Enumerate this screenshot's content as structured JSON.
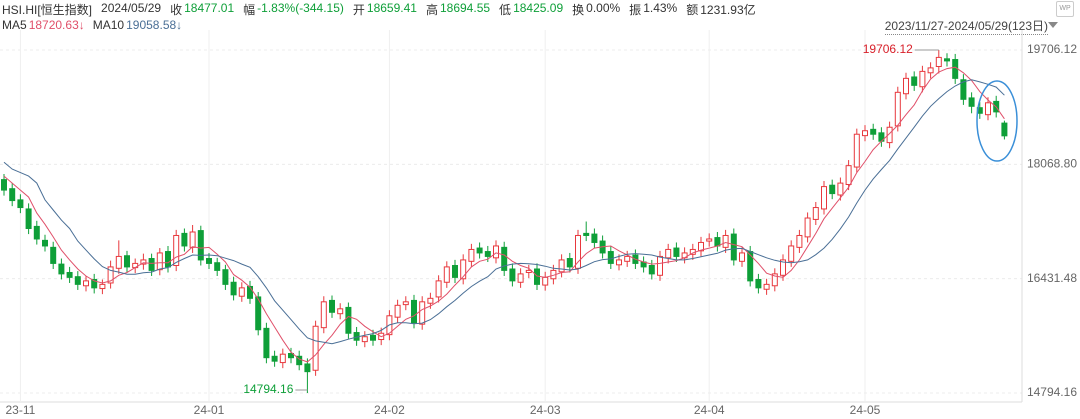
{
  "header": {
    "symbol": "HSI.HI[恒生指数]",
    "date": "2024/05/29",
    "quote": [
      {
        "label": "收",
        "value": "18477.01",
        "color": "#0e9f38"
      },
      {
        "label": "幅",
        "value": "-1.83%(-344.15)",
        "color": "#0e9f38"
      },
      {
        "label": "开",
        "value": "18659.41",
        "color": "#0e9f38"
      },
      {
        "label": "高",
        "value": "18694.55",
        "color": "#0e9f38"
      },
      {
        "label": "低",
        "value": "18425.09",
        "color": "#0e9f38"
      },
      {
        "label": "换",
        "value": "0.00%",
        "color": "#333333"
      },
      {
        "label": "振",
        "value": "1.43%",
        "color": "#333333"
      },
      {
        "label": "额",
        "value": "1231.93亿",
        "color": "#333333"
      }
    ],
    "range": "2023/11/27-2024/05/29(123日)"
  },
  "chart_data": {
    "type": "candlestick",
    "up_color": "#e8383d",
    "down_color": "#0e9f38",
    "grid": true,
    "categories": [
      null,
      null,
      "23-11",
      null,
      null,
      null,
      null,
      null,
      null,
      null,
      null,
      null,
      null,
      null,
      null,
      null,
      null,
      null,
      null,
      null,
      null,
      null,
      null,
      null,
      null,
      "24-01",
      null,
      null,
      null,
      null,
      null,
      null,
      null,
      null,
      null,
      null,
      null,
      null,
      null,
      null,
      null,
      null,
      null,
      null,
      null,
      null,
      null,
      "24-02",
      null,
      null,
      null,
      null,
      null,
      null,
      null,
      null,
      null,
      null,
      null,
      null,
      null,
      null,
      null,
      null,
      null,
      null,
      "24-03",
      null,
      null,
      null,
      null,
      null,
      null,
      null,
      null,
      null,
      null,
      null,
      null,
      null,
      null,
      null,
      null,
      null,
      null,
      null,
      "24-04",
      null,
      null,
      null,
      null,
      null,
      null,
      null,
      null,
      null,
      null,
      null,
      null,
      null,
      null,
      null,
      null,
      null,
      null,
      "24-05",
      null,
      null,
      null,
      null,
      null,
      null,
      null,
      null,
      null,
      null,
      null,
      null,
      null,
      null,
      null,
      null,
      null
    ],
    "open": [
      17850,
      17720,
      17560,
      17430,
      17180,
      16980,
      16880,
      16640,
      16520,
      16460,
      16330,
      16420,
      16290,
      16370,
      16580,
      16760,
      16590,
      16640,
      16720,
      16560,
      16820,
      16620,
      17080,
      16880,
      17120,
      16720,
      16660,
      16560,
      16380,
      16180,
      16320,
      16170,
      15720,
      15320,
      15230,
      15360,
      15320,
      15210,
      15120,
      15730,
      16120,
      15930,
      16020,
      15660,
      15530,
      15620,
      15560,
      15630,
      15880,
      16060,
      16120,
      15780,
      16080,
      16170,
      16380,
      16620,
      16430,
      16680,
      16870,
      16820,
      16730,
      16880,
      16570,
      16380,
      16520,
      16570,
      16340,
      16430,
      16530,
      16720,
      16580,
      17080,
      17070,
      16970,
      16820,
      16630,
      16680,
      16770,
      16670,
      16620,
      16480,
      16730,
      16870,
      16730,
      16780,
      16830,
      16970,
      17020,
      16880,
      17070,
      16680,
      16820,
      16420,
      16280,
      16330,
      16480,
      16680,
      16880,
      17030,
      17280,
      17430,
      17770,
      17630,
      17780,
      18030,
      18480,
      18570,
      18520,
      18380,
      18620,
      19080,
      19320,
      19180,
      19380,
      19470,
      19580,
      19570,
      19280,
      19020,
      18880,
      18780,
      18970,
      18659.41
    ],
    "high": [
      17930,
      17800,
      17640,
      17510,
      17260,
      17060,
      16960,
      16720,
      16600,
      16540,
      16470,
      16500,
      16420,
      16690,
      16980,
      16830,
      16720,
      16790,
      16790,
      16870,
      16900,
      17130,
      17150,
      17200,
      17190,
      16800,
      16730,
      16630,
      16460,
      16380,
      16400,
      16240,
      15800,
      15400,
      15430,
      15440,
      15400,
      15290,
      15830,
      16180,
      16190,
      16080,
      16090,
      15740,
      15680,
      15700,
      15730,
      15980,
      16130,
      16180,
      16200,
      16180,
      16230,
      16480,
      16680,
      16700,
      16780,
      16930,
      16950,
      16900,
      16980,
      16960,
      16650,
      16580,
      16630,
      16650,
      16530,
      16630,
      16780,
      16800,
      17130,
      17250,
      17150,
      17050,
      16900,
      16780,
      16830,
      16850,
      16750,
      16700,
      16830,
      16930,
      16950,
      16880,
      16930,
      17030,
      17080,
      17100,
      17130,
      17150,
      16880,
      16900,
      16500,
      16430,
      16580,
      16780,
      16980,
      17130,
      17380,
      17530,
      17830,
      17850,
      17880,
      18130,
      18580,
      18630,
      18650,
      18600,
      18680,
      19180,
      19380,
      19400,
      19480,
      19530,
      19706.12,
      19660,
      19650,
      19360,
      19100,
      18960,
      19030,
      19050,
      18694.55
    ],
    "low": [
      17620,
      17470,
      17370,
      17070,
      16920,
      16820,
      16570,
      16420,
      16370,
      16270,
      16250,
      16220,
      16210,
      16290,
      16500,
      16520,
      16510,
      16560,
      16470,
      16480,
      16520,
      16540,
      16820,
      16800,
      16620,
      16570,
      16470,
      16270,
      16120,
      16100,
      16070,
      15620,
      15220,
      15170,
      15150,
      15220,
      15120,
      14794.16,
      15040,
      15650,
      15870,
      15850,
      15570,
      15470,
      15450,
      15470,
      15480,
      15550,
      15800,
      15980,
      15720,
      15700,
      16000,
      16090,
      16300,
      16370,
      16350,
      16600,
      16720,
      16670,
      16650,
      16470,
      16320,
      16300,
      16440,
      16270,
      16260,
      16350,
      16450,
      16520,
      16500,
      16970,
      16870,
      16720,
      16570,
      16550,
      16600,
      16570,
      16520,
      16420,
      16400,
      16650,
      16670,
      16650,
      16700,
      16750,
      16890,
      16820,
      16800,
      16620,
      16600,
      16320,
      16220,
      16200,
      16250,
      16400,
      16600,
      16800,
      16950,
      17200,
      17350,
      17570,
      17550,
      17700,
      17950,
      18400,
      18420,
      18320,
      18300,
      18540,
      19000,
      19120,
      19100,
      19300,
      19370,
      19470,
      19220,
      18920,
      18800,
      18720,
      18700,
      18740,
      18425.09
    ],
    "close": [
      17700,
      17550,
      17450,
      17150,
      17000,
      16900,
      16650,
      16500,
      16450,
      16350,
      16400,
      16300,
      16350,
      16600,
      16750,
      16600,
      16650,
      16700,
      16550,
      16800,
      16600,
      17050,
      16900,
      17100,
      16700,
      16650,
      16550,
      16350,
      16200,
      16300,
      16150,
      15700,
      15300,
      15250,
      15350,
      15300,
      15200,
      15100,
      15750,
      16100,
      15950,
      16000,
      15650,
      15550,
      15600,
      15550,
      15650,
      15900,
      16050,
      16100,
      15800,
      16100,
      16150,
      16400,
      16600,
      16450,
      16700,
      16850,
      16800,
      16750,
      16900,
      16550,
      16400,
      16500,
      16550,
      16350,
      16450,
      16550,
      16700,
      16600,
      17050,
      17050,
      16950,
      16800,
      16650,
      16700,
      16750,
      16650,
      16600,
      16500,
      16750,
      16850,
      16750,
      16800,
      16850,
      16950,
      17000,
      16900,
      17050,
      16700,
      16800,
      16400,
      16300,
      16350,
      16500,
      16700,
      16900,
      17050,
      17300,
      17450,
      17750,
      17650,
      17800,
      18050,
      18500,
      18550,
      18500,
      18400,
      18600,
      19100,
      19300,
      19200,
      19400,
      19450,
      19600,
      19550,
      19300,
      19000,
      18900,
      18800,
      18950,
      18820,
      18477.01
    ],
    "series": [
      {
        "name": "MA5",
        "color": "#e0506a",
        "legend_value": "18720.63↓",
        "values": [
          17900,
          17800,
          17700,
          17600,
          17370,
          17210,
          17030,
          16840,
          16700,
          16570,
          16470,
          16400,
          16370,
          16400,
          16480,
          16520,
          16590,
          16660,
          16650,
          16660,
          16660,
          16740,
          16780,
          16890,
          16870,
          16880,
          16780,
          16670,
          16490,
          16410,
          16310,
          16140,
          15930,
          15740,
          15550,
          15380,
          15280,
          15240,
          15340,
          15490,
          15620,
          15780,
          15890,
          15850,
          15750,
          15670,
          15600,
          15650,
          15750,
          15850,
          15900,
          15990,
          16040,
          16110,
          16210,
          16340,
          16460,
          16600,
          16680,
          16710,
          16800,
          16770,
          16680,
          16620,
          16580,
          16470,
          16450,
          16480,
          16520,
          16530,
          16670,
          16790,
          16870,
          16890,
          16900,
          16830,
          16770,
          16710,
          16670,
          16640,
          16650,
          16670,
          16690,
          16730,
          16800,
          16840,
          16870,
          16900,
          16950,
          16920,
          16890,
          16770,
          16650,
          16510,
          16470,
          16450,
          16550,
          16700,
          16890,
          17080,
          17290,
          17440,
          17590,
          17740,
          17950,
          18110,
          18280,
          18400,
          18510,
          18630,
          18780,
          18920,
          19120,
          19290,
          19390,
          19440,
          19460,
          19380,
          19270,
          19110,
          18990,
          18890,
          18720.63
        ]
      },
      {
        "name": "MA10",
        "color": "#4a6f96",
        "legend_value": "19058.58↓",
        "values": [
          18100,
          18000,
          17950,
          17900,
          17800,
          17560,
          17415,
          17270,
          17150,
          16970,
          16840,
          16715,
          16605,
          16550,
          16525,
          16495,
          16495,
          16515,
          16525,
          16570,
          16590,
          16665,
          16720,
          16770,
          16765,
          16770,
          16760,
          16725,
          16690,
          16640,
          16595,
          16460,
          16300,
          16115,
          15980,
          15845,
          15710,
          15585,
          15540,
          15520,
          15500,
          15530,
          15565,
          15595,
          15620,
          15645,
          15690,
          15770,
          15800,
          15800,
          15785,
          15795,
          15845,
          15930,
          16030,
          16120,
          16225,
          16320,
          16395,
          16460,
          16570,
          16615,
          16640,
          16650,
          16645,
          16635,
          16610,
          16580,
          16570,
          16555,
          16570,
          16620,
          16675,
          16705,
          16715,
          16750,
          16780,
          16790,
          16780,
          16770,
          16740,
          16720,
          16700,
          16700,
          16720,
          16745,
          16770,
          16795,
          16840,
          16860,
          16865,
          16820,
          16775,
          16730,
          16695,
          16670,
          16660,
          16675,
          16700,
          16775,
          16870,
          16995,
          17145,
          17315,
          17515,
          17700,
          17860,
          17995,
          18125,
          18290,
          18445,
          18600,
          18760,
          18900,
          19010,
          19110,
          19190,
          19250,
          19280,
          19250,
          19215,
          19175,
          19058.58
        ]
      }
    ],
    "ylim": [
      14694,
      19921
    ],
    "yticks": [
      19706.12,
      {
        "value": 18068.8,
        "label": "18068.80"
      },
      16431.48,
      14794.16
    ],
    "annotations": {
      "max": 19706.12,
      "max_color": "#d8202a",
      "min": 14794.16,
      "min_color": "#0e9f38"
    }
  }
}
